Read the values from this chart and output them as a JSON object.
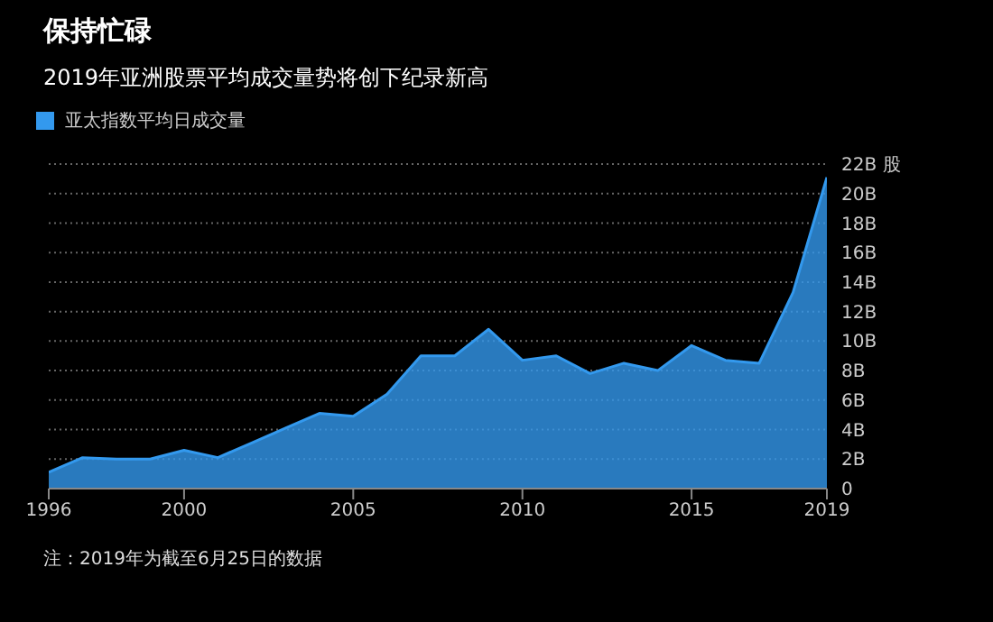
{
  "chart_data": {
    "type": "area",
    "title": "保持忙碌",
    "subtitle": "2019年亚洲股票平均成交量势将创下纪录新高",
    "x": [
      1996,
      1997,
      1998,
      1999,
      2000,
      2001,
      2002,
      2003,
      2004,
      2005,
      2006,
      2007,
      2008,
      2009,
      2010,
      2011,
      2012,
      2013,
      2014,
      2015,
      2016,
      2017,
      2018,
      2019
    ],
    "series": [
      {
        "name": "亚太指数平均日成交量",
        "color": "#3399ee",
        "values": [
          1.1,
          2.1,
          2.0,
          2.0,
          2.6,
          2.1,
          3.1,
          4.1,
          5.1,
          4.9,
          6.4,
          9.0,
          9.0,
          10.8,
          8.7,
          9.0,
          7.8,
          8.5,
          8.0,
          9.7,
          8.7,
          8.5,
          13.3,
          21.1
        ]
      }
    ],
    "xlim": [
      1996,
      2019
    ],
    "xticks": [
      1996,
      2000,
      2005,
      2010,
      2015,
      2019
    ],
    "ylim": [
      0,
      22
    ],
    "yticks": [
      {
        "value": 0,
        "label": "0"
      },
      {
        "value": 2,
        "label": "2B"
      },
      {
        "value": 4,
        "label": "4B"
      },
      {
        "value": 6,
        "label": "6B"
      },
      {
        "value": 8,
        "label": "8B"
      },
      {
        "value": 10,
        "label": "10B"
      },
      {
        "value": 12,
        "label": "12B"
      },
      {
        "value": 14,
        "label": "14B"
      },
      {
        "value": 16,
        "label": "16B"
      },
      {
        "value": 18,
        "label": "18B"
      },
      {
        "value": 20,
        "label": "20B"
      },
      {
        "value": 22,
        "label": "22B 股"
      }
    ],
    "grid": "y",
    "legend": "top left",
    "annotations": [
      "注：2019年为截至6月25日的数据"
    ]
  }
}
